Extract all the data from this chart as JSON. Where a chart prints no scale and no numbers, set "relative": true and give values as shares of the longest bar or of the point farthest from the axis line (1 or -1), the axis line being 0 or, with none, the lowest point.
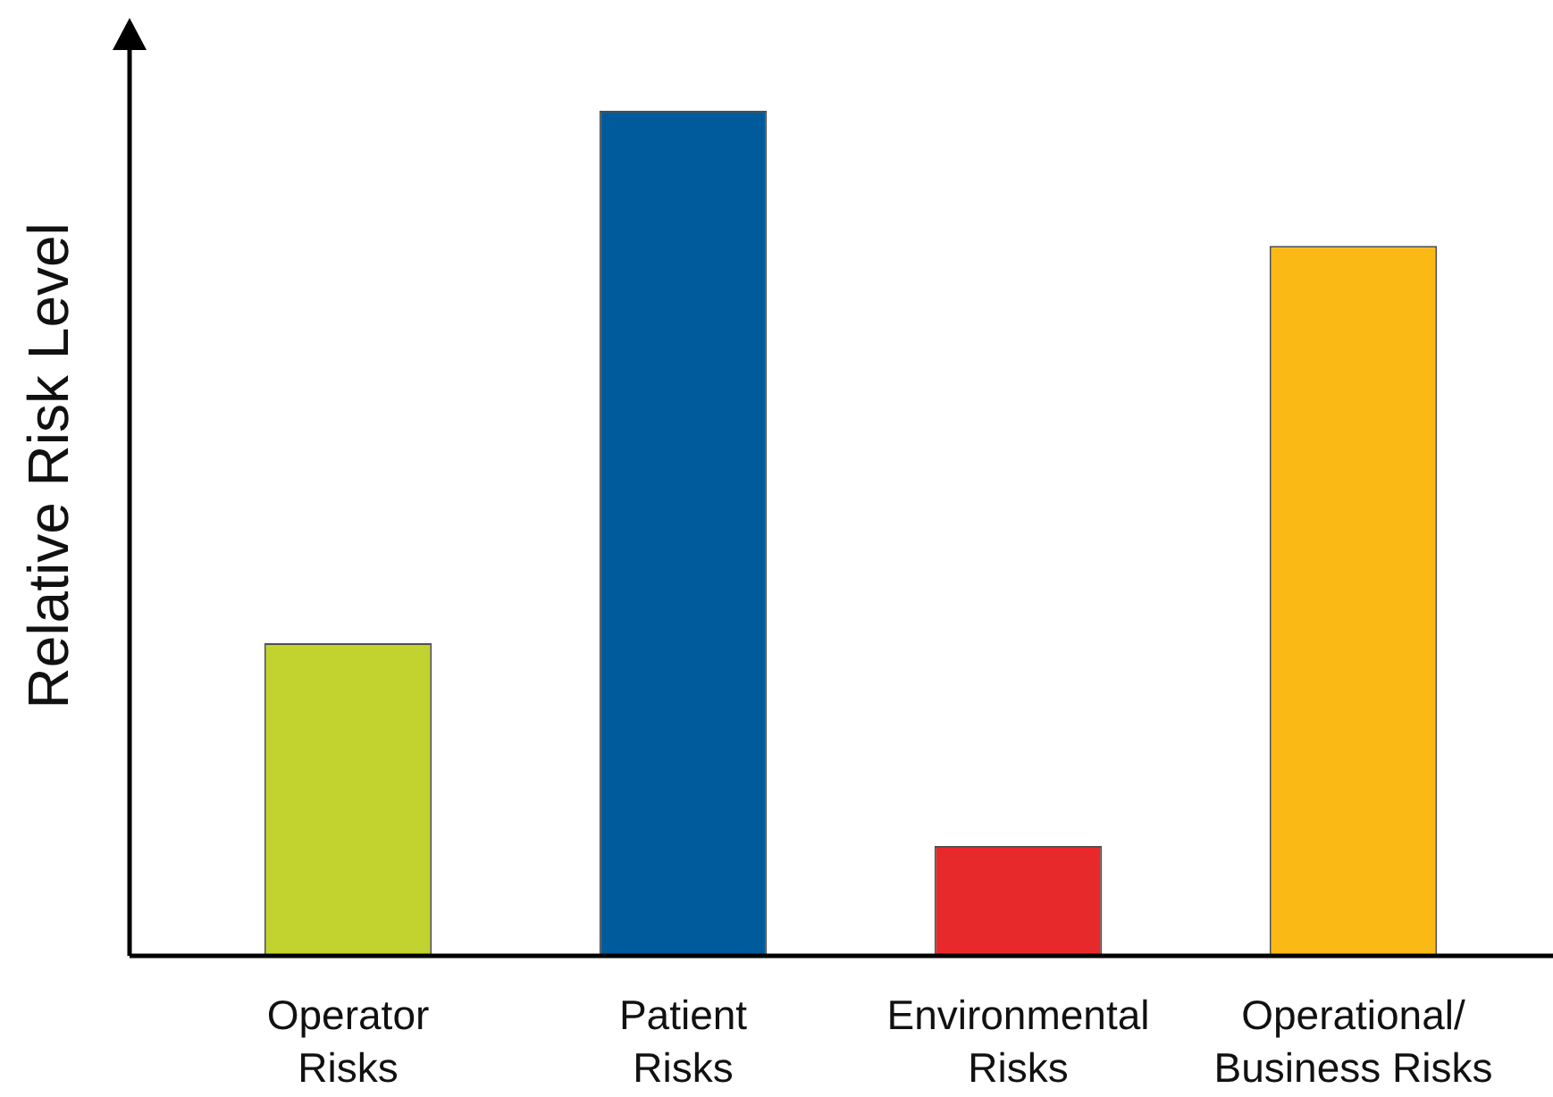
{
  "chart_data": {
    "type": "bar",
    "ylabel": "Relative Risk Level",
    "categories": [
      "Operator\nRisks",
      "Patient\nRisks",
      "Environmental\nRisks",
      "Operational/\nBusiness Risks"
    ],
    "values": [
      0.37,
      1,
      0.13,
      0.84
    ],
    "colors": [
      "#c2d22e",
      "#005b9d",
      "#e8292b",
      "#fbb915"
    ],
    "relative": true
  }
}
